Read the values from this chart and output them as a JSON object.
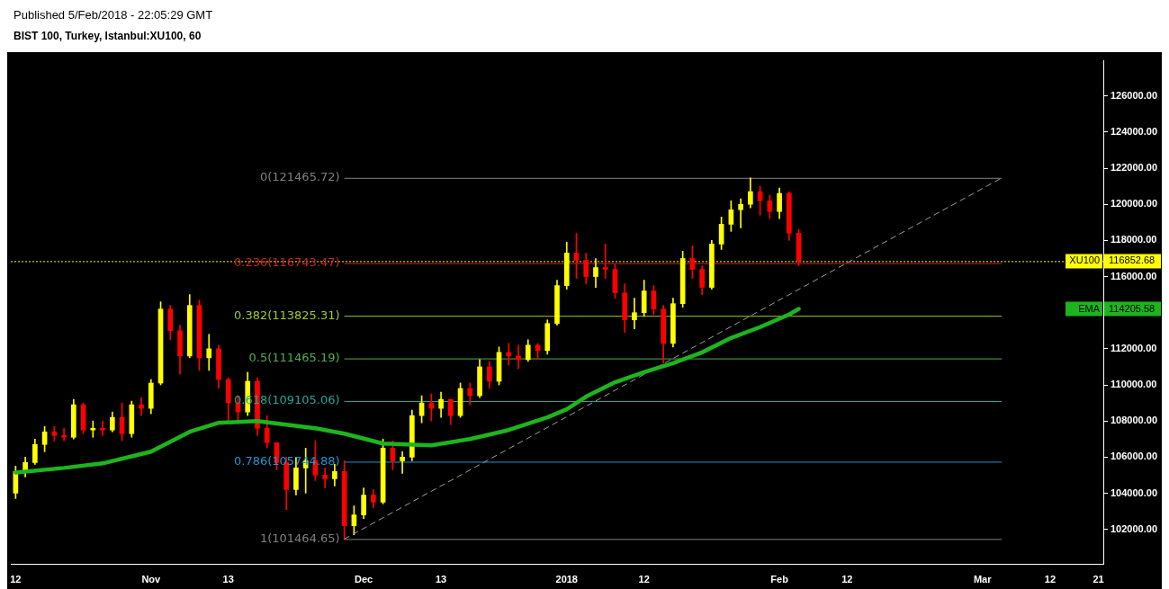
{
  "chart_data": {
    "type": "candlestick",
    "title": "BIST 100, Turkey, Istanbul:XU100, 60",
    "subtitle": "Published 5/Feb/2018 - 22:05:29 GMT",
    "annotations": [
      "116852.68",
      "114205.58"
    ],
    "categories": [
      "12",
      null,
      null,
      null,
      null,
      null,
      null,
      null,
      null,
      null,
      null,
      null,
      null,
      null,
      "Nov",
      null,
      null,
      null,
      null,
      null,
      null,
      null,
      "13",
      null,
      null,
      null,
      null,
      null,
      null,
      null,
      null,
      null,
      null,
      null,
      null,
      null,
      "Dec",
      null,
      null,
      null,
      null,
      null,
      null,
      null,
      "13",
      null,
      null,
      null,
      null,
      null,
      null,
      null,
      null,
      null,
      null,
      null,
      null,
      "2018",
      null,
      null,
      null,
      null,
      null,
      null,
      null,
      "12",
      null,
      null,
      null,
      null,
      null,
      null,
      null,
      null,
      null,
      null,
      null,
      null,
      null,
      "Feb",
      null,
      null,
      null,
      null,
      null,
      null,
      "12",
      null,
      null,
      null,
      null,
      null,
      null,
      null,
      null,
      null,
      null,
      null,
      null,
      null,
      "Mar",
      null,
      null,
      null,
      null,
      null,
      null,
      "12",
      null,
      null,
      null,
      null,
      "21"
    ],
    "ylim": [
      100050,
      127950
    ],
    "yticks": [
      {
        "value": 102000,
        "label": "102000.00"
      },
      {
        "value": 104000,
        "label": "104000.00"
      },
      {
        "value": 106000,
        "label": "106000.00"
      },
      {
        "value": 108000,
        "label": "108000.00"
      },
      {
        "value": 110000,
        "label": "110000.00"
      },
      {
        "value": 112000,
        "label": "112000.00"
      },
      {
        "value": 116000,
        "label": "116000.00"
      },
      {
        "value": 118000,
        "label": "118000.00"
      },
      {
        "value": 120000,
        "label": "120000.00"
      },
      {
        "value": 122000,
        "label": "122000.00"
      },
      {
        "value": 124000,
        "label": "124000.00"
      },
      {
        "value": 126000,
        "label": "126000.00"
      }
    ],
    "series": [
      {
        "name": "XU100",
        "ohlc": [
          [
            104000,
            105500,
            103700,
            105200
          ],
          [
            105200,
            106000,
            104900,
            105700
          ],
          [
            105700,
            107000,
            105600,
            106700
          ],
          [
            106700,
            107700,
            106300,
            107400
          ],
          [
            107400,
            107700,
            106900,
            107200
          ],
          [
            107200,
            107600,
            106900,
            107100
          ],
          [
            107100,
            109200,
            107000,
            108900
          ],
          [
            108900,
            109000,
            107300,
            107500
          ],
          [
            107500,
            108000,
            107100,
            107600
          ],
          [
            107600,
            108000,
            107200,
            107500
          ],
          [
            107500,
            108500,
            107400,
            108200
          ],
          [
            108200,
            109000,
            106900,
            107300
          ],
          [
            107300,
            109100,
            107100,
            108900
          ],
          [
            108900,
            109300,
            108300,
            108700
          ],
          [
            108700,
            110300,
            108400,
            110100
          ],
          [
            110100,
            114600,
            110000,
            114200
          ],
          [
            114200,
            114400,
            112500,
            113000
          ],
          [
            113000,
            113300,
            110600,
            111600
          ],
          [
            111600,
            115000,
            111500,
            114400
          ],
          [
            114400,
            114700,
            110800,
            111500
          ],
          [
            111500,
            112800,
            110800,
            112000
          ],
          [
            112000,
            112200,
            109800,
            110300
          ],
          [
            110300,
            110400,
            108000,
            109000
          ],
          [
            109000,
            109400,
            108000,
            108500
          ],
          [
            108500,
            110700,
            108300,
            110200
          ],
          [
            110200,
            110400,
            107200,
            107600
          ],
          [
            107600,
            108300,
            106500,
            106800
          ],
          [
            106800,
            106800,
            105300,
            105700
          ],
          [
            105700,
            106000,
            103100,
            104200
          ],
          [
            104200,
            106000,
            103900,
            105400
          ],
          [
            105400,
            106500,
            104000,
            105800
          ],
          [
            105800,
            106900,
            104700,
            105000
          ],
          [
            105000,
            105400,
            104300,
            104800
          ],
          [
            104800,
            105600,
            104400,
            105200
          ],
          [
            105200,
            105800,
            101464.65,
            102200
          ],
          [
            102200,
            103300,
            101700,
            102800
          ],
          [
            102800,
            104300,
            102600,
            103900
          ],
          [
            103900,
            104200,
            103200,
            103500
          ],
          [
            103500,
            107000,
            103400,
            106500
          ],
          [
            106500,
            106900,
            105300,
            105800
          ],
          [
            105800,
            106300,
            105100,
            106000
          ],
          [
            106000,
            108600,
            105800,
            108300
          ],
          [
            108300,
            109400,
            107900,
            109000
          ],
          [
            109000,
            109500,
            108000,
            108700
          ],
          [
            108700,
            109600,
            108200,
            109200
          ],
          [
            109200,
            109200,
            107800,
            108300
          ],
          [
            108300,
            110100,
            108200,
            109800
          ],
          [
            109800,
            110100,
            108900,
            109400
          ],
          [
            109400,
            111400,
            109300,
            111000
          ],
          [
            111000,
            111300,
            109800,
            110200
          ],
          [
            110200,
            112100,
            110000,
            111800
          ],
          [
            111800,
            112300,
            111100,
            111600
          ],
          [
            111600,
            112200,
            110900,
            111400
          ],
          [
            111400,
            112500,
            111300,
            112200
          ],
          [
            112200,
            112300,
            111400,
            111900
          ],
          [
            111900,
            113600,
            111700,
            113400
          ],
          [
            113400,
            115800,
            113300,
            115500
          ],
          [
            115500,
            117900,
            115300,
            117300
          ],
          [
            117300,
            118400,
            115900,
            116900
          ],
          [
            116900,
            117300,
            115600,
            116000
          ],
          [
            116000,
            117000,
            115400,
            116500
          ],
          [
            116500,
            117800,
            115900,
            116400
          ],
          [
            116400,
            116700,
            114800,
            115100
          ],
          [
            115100,
            115600,
            112900,
            113600
          ],
          [
            113600,
            114800,
            113100,
            114000
          ],
          [
            114000,
            115800,
            113800,
            115200
          ],
          [
            115200,
            115500,
            113900,
            114200
          ],
          [
            114200,
            114400,
            111200,
            112300
          ],
          [
            112300,
            114800,
            112100,
            114500
          ],
          [
            114500,
            117400,
            114300,
            117000
          ],
          [
            117000,
            117700,
            115900,
            116400
          ],
          [
            116400,
            116600,
            115000,
            115400
          ],
          [
            115400,
            118000,
            115300,
            117800
          ],
          [
            117800,
            119300,
            117500,
            118900
          ],
          [
            118900,
            120200,
            118500,
            119700
          ],
          [
            119700,
            120300,
            118700,
            120000
          ],
          [
            120000,
            121465.72,
            119800,
            120700
          ],
          [
            120700,
            121000,
            119400,
            120200
          ],
          [
            120200,
            120500,
            119200,
            119600
          ],
          [
            119600,
            120900,
            119200,
            120600
          ],
          [
            120600,
            120700,
            118000,
            118400
          ],
          [
            118400,
            118600,
            116600,
            116852.68
          ],
          null,
          null,
          null,
          null,
          null,
          null,
          null,
          null,
          null,
          null,
          null,
          null,
          null,
          null,
          null,
          null,
          null,
          null,
          null,
          null,
          null,
          null,
          null,
          null,
          null,
          null,
          null,
          null,
          null,
          null,
          null
        ],
        "colors": [
          "#ffff00",
          "#ffff00",
          "#ffff00",
          "#ffff00",
          "#ff0000",
          "#ff0000",
          "#ffff00",
          "#ff0000",
          "#ffff00",
          "#ff0000",
          "#ffff00",
          "#ff0000",
          "#ffff00",
          "#ff0000",
          "#ffff00",
          "#ffff00",
          "#ff0000",
          "#ff0000",
          "#ffff00",
          "#ff0000",
          "#ffff00",
          "#ff0000",
          "#ff0000",
          "#ff0000",
          "#ffff00",
          "#ff0000",
          "#ff0000",
          "#ff0000",
          "#ff0000",
          "#ffff00",
          "#ffff00",
          "#ff0000",
          "#ff0000",
          "#ffff00",
          "#ff0000",
          "#ffff00",
          "#ffff00",
          "#ff0000",
          "#ffff00",
          "#ff0000",
          "#ffff00",
          "#ffff00",
          "#ffff00",
          "#ff0000",
          "#ffff00",
          "#ff0000",
          "#ffff00",
          "#ff0000",
          "#ffff00",
          "#ff0000",
          "#ffff00",
          "#ff0000",
          "#ff0000",
          "#ffff00",
          "#ff0000",
          "#ffff00",
          "#ffff00",
          "#ffff00",
          "#ff0000",
          "#ff0000",
          "#ffff00",
          "#ff0000",
          "#ff0000",
          "#ff0000",
          "#ffff00",
          "#ffff00",
          "#ff0000",
          "#ff0000",
          "#ffff00",
          "#ffff00",
          "#ff0000",
          "#ff0000",
          "#ffff00",
          "#ffff00",
          "#ffff00",
          "#ffff00",
          "#ffff00",
          "#ff0000",
          "#ff0000",
          "#ffff00",
          "#ff0000",
          "#ff0000",
          null,
          null,
          null,
          null,
          null,
          null,
          null,
          null,
          null,
          null,
          null,
          null,
          null,
          null,
          null,
          null,
          null,
          null,
          null,
          null,
          null,
          null,
          null,
          null,
          null,
          null,
          null,
          null,
          null,
          null,
          null
        ]
      },
      {
        "name": "EMA",
        "type": "line",
        "color": "#1db51d",
        "line_style": "solid",
        "values": [
          105150,
          null,
          null,
          null,
          null,
          105400,
          null,
          null,
          null,
          105650,
          null,
          null,
          null,
          null,
          106300,
          null,
          null,
          null,
          107400,
          null,
          null,
          107900,
          null,
          null,
          null,
          108000,
          null,
          null,
          107800,
          null,
          null,
          107600,
          null,
          null,
          107300,
          null,
          null,
          null,
          106750,
          null,
          null,
          null,
          null,
          106650,
          null,
          null,
          null,
          107000,
          null,
          null,
          null,
          107500,
          null,
          null,
          null,
          108200,
          null,
          108650,
          null,
          109350,
          null,
          null,
          110150,
          null,
          null,
          110700,
          null,
          null,
          111200,
          null,
          null,
          111800,
          null,
          null,
          112600,
          null,
          null,
          113200,
          null,
          null,
          113900,
          114205.58,
          null,
          null,
          null,
          null,
          null,
          null,
          null,
          null,
          null,
          null,
          null,
          null,
          null,
          null,
          null,
          null,
          null,
          null,
          null,
          null,
          null,
          null,
          null,
          null,
          null,
          null,
          null,
          null,
          null,
          null,
          null
        ]
      },
      {
        "type": "line",
        "color": "#9e9e9e",
        "line_style": "dashed",
        "values": [
          null,
          null,
          null,
          null,
          null,
          null,
          null,
          null,
          null,
          null,
          null,
          null,
          null,
          null,
          null,
          null,
          null,
          null,
          null,
          null,
          null,
          null,
          null,
          null,
          null,
          null,
          null,
          null,
          null,
          null,
          null,
          null,
          null,
          null,
          101464.65,
          null,
          null,
          null,
          null,
          null,
          null,
          null,
          null,
          null,
          null,
          null,
          null,
          null,
          null,
          null,
          null,
          null,
          null,
          null,
          null,
          null,
          null,
          null,
          null,
          null,
          null,
          null,
          null,
          null,
          null,
          null,
          null,
          null,
          null,
          null,
          null,
          null,
          null,
          null,
          null,
          null,
          null,
          null,
          null,
          null,
          null,
          null,
          null,
          null,
          null,
          null,
          null,
          null,
          null,
          null,
          null,
          null,
          null,
          null,
          null,
          null,
          null,
          null,
          null,
          null,
          null,
          null,
          121465.72,
          null,
          null,
          null,
          null,
          null,
          null,
          null,
          null,
          null,
          null
        ]
      }
    ],
    "ref_lines": [
      {
        "axis": "y",
        "value": 121465.72,
        "label": "0(121465.72)",
        "color": "#808080"
      },
      {
        "axis": "y",
        "value": 116743.47,
        "label": "0.236(116743.47)",
        "color": "#c62828"
      },
      {
        "axis": "y",
        "value": 113825.31,
        "label": "0.382(113825.31)",
        "color": "#9acd32"
      },
      {
        "axis": "y",
        "value": 111465.19,
        "label": "0.5(111465.19)",
        "color": "#4caf50"
      },
      {
        "axis": "y",
        "value": 109105.06,
        "label": "0.618(109105.06)",
        "color": "#26a69a"
      },
      {
        "axis": "y",
        "value": 105744.88,
        "label": "0.786(105744.88)",
        "color": "#2196d3"
      },
      {
        "axis": "y",
        "value": 101464.65,
        "label": "1(101464.65)",
        "color": "#808080"
      },
      {
        "axis": "y",
        "value": 116852.68,
        "color": "#ffff00",
        "line_style": "dotted"
      }
    ],
    "legend": false
  }
}
